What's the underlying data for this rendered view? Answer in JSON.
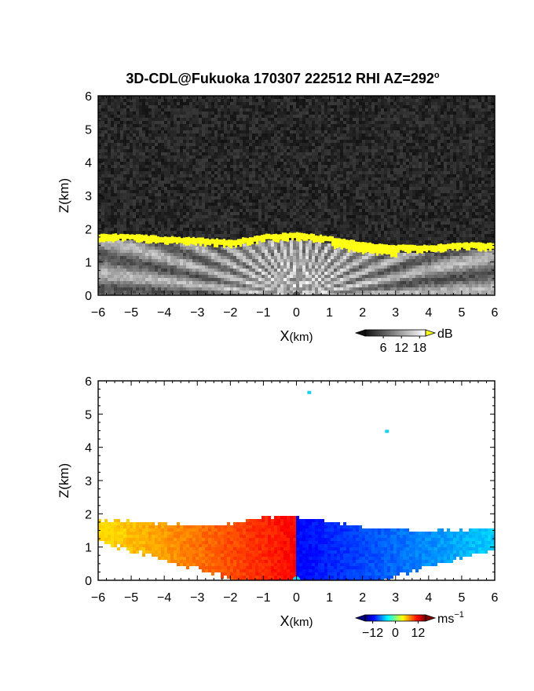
{
  "figure": {
    "title": "3D-CDL@Fukuoka 170307 222512 RHI AZ=292",
    "title_degree": "o"
  },
  "chart_data": [
    {
      "type": "heatmap",
      "name": "reflectivity",
      "xlabel_main": "X",
      "xlabel_unit": "(km)",
      "ylabel": "Z(km)",
      "xlim": [
        -6,
        6
      ],
      "ylim": [
        0,
        6
      ],
      "xticks": [
        "-6",
        "-5",
        "-4",
        "-3",
        "-2",
        "-1",
        "0",
        "1",
        "2",
        "3",
        "4",
        "5",
        "6"
      ],
      "yticks": [
        "0",
        "1",
        "2",
        "3",
        "4",
        "5",
        "6"
      ],
      "colorbar": {
        "colormap": "grayscale-yellow",
        "range": [
          0,
          20
        ],
        "tick_values": [
          6,
          12,
          18
        ],
        "tick_labels": [
          "6",
          "12",
          "18"
        ],
        "unit": "dB",
        "unit_sup": ""
      },
      "layer_top_km": [
        [
          -6,
          1.78
        ],
        [
          -5,
          1.78
        ],
        [
          -4,
          1.7
        ],
        [
          -3,
          1.66
        ],
        [
          -2,
          1.6
        ],
        [
          -1,
          1.76
        ],
        [
          0,
          1.82
        ],
        [
          1,
          1.7
        ],
        [
          2,
          1.52
        ],
        [
          3,
          1.44
        ],
        [
          4,
          1.44
        ],
        [
          5,
          1.52
        ],
        [
          6,
          1.5
        ]
      ]
    },
    {
      "type": "heatmap",
      "name": "doppler-velocity",
      "xlabel_main": "X",
      "xlabel_unit": "(km)",
      "ylabel": "Z(km)",
      "xlim": [
        -6,
        6
      ],
      "ylim": [
        0,
        6
      ],
      "xticks": [
        "-6",
        "-5",
        "-4",
        "-3",
        "-2",
        "-1",
        "0",
        "1",
        "2",
        "3",
        "4",
        "5",
        "6"
      ],
      "yticks": [
        "0",
        "1",
        "2",
        "3",
        "4",
        "5",
        "6"
      ],
      "colorbar": {
        "colormap": "jet",
        "range": [
          -16,
          16
        ],
        "tick_values": [
          -12,
          0,
          12
        ],
        "tick_labels": [
          "−12",
          "0",
          "12"
        ],
        "unit": "ms",
        "unit_sup": "−1"
      },
      "layer_top_km": [
        [
          -6,
          1.8
        ],
        [
          -5,
          1.78
        ],
        [
          -4,
          1.7
        ],
        [
          -3,
          1.64
        ],
        [
          -2,
          1.7
        ],
        [
          -1,
          1.9
        ],
        [
          0,
          1.92
        ],
        [
          1,
          1.8
        ],
        [
          2,
          1.6
        ],
        [
          3,
          1.52
        ],
        [
          4,
          1.48
        ],
        [
          5,
          1.52
        ],
        [
          6,
          1.58
        ]
      ],
      "isolated_echoes": [
        {
          "x": 0.4,
          "z": 5.65
        },
        {
          "x": 2.75,
          "z": 4.48
        }
      ]
    }
  ]
}
